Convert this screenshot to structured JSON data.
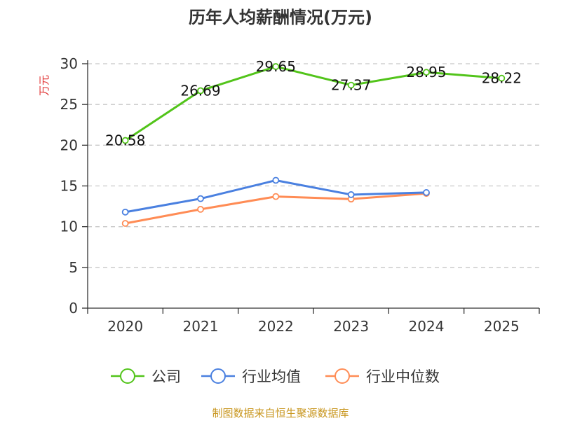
{
  "chart_data": {
    "type": "line",
    "title": "历年人均薪酬情况(万元)",
    "ylabel": "万元",
    "xlabel": "",
    "ylim": [
      0,
      30
    ],
    "yticks": [
      0,
      5,
      10,
      15,
      20,
      25,
      30
    ],
    "grid": true,
    "legend_position": "bottom",
    "categories": [
      "2020",
      "2021",
      "2022",
      "2023",
      "2024",
      "2025"
    ],
    "series": [
      {
        "name": "公司",
        "color": "#52c41a",
        "values": [
          20.58,
          26.69,
          29.65,
          27.37,
          28.95,
          28.22
        ],
        "labels": [
          "20.58",
          "26.69",
          "29.65",
          "27.37",
          "28.95",
          "28.22"
        ]
      },
      {
        "name": "行业均值",
        "color": "#4a80e0",
        "values": [
          11.79,
          13.44,
          15.69,
          13.93,
          14.19,
          null
        ]
      },
      {
        "name": "行业中位数",
        "color": "#ff8c55",
        "values": [
          10.4,
          12.13,
          13.7,
          13.39,
          14.08,
          null
        ]
      }
    ],
    "source": "制图数据来自恒生聚源数据库"
  }
}
